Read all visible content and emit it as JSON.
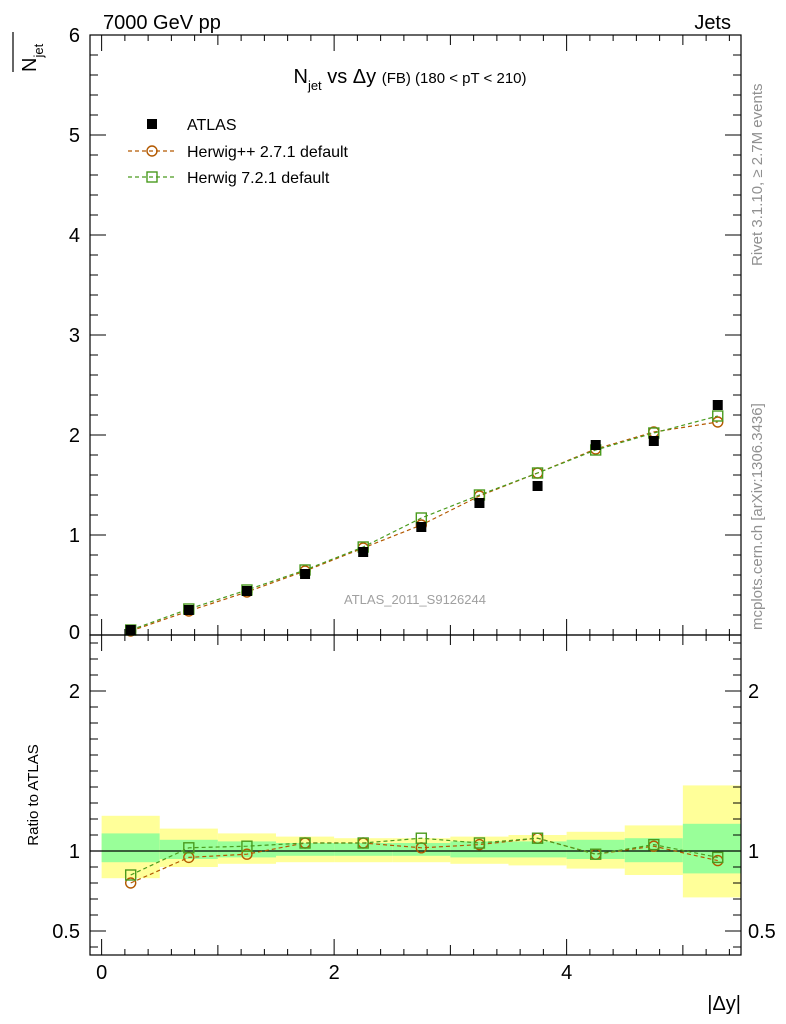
{
  "header": {
    "energy_label": "7000 GeV pp",
    "category_label": "Jets"
  },
  "side_text": {
    "rivet_label": "Rivet 3.1.10, ≥ 2.7M events",
    "source_label": "mcplots.cern.ch [arXiv:1306.3436]"
  },
  "chart_data": [
    {
      "type": "scatter",
      "panel": "main",
      "title_main": "N",
      "title_sub": "jet",
      "title_mid": " vs Δy ",
      "title_tail": "(FB)",
      "title_range": " (180 < pT < 210)",
      "ylabel_main": "N",
      "ylabel_sub": "jet",
      "analysis_label": "ATLAS_2011_S9126244",
      "xlim": [
        -0.1,
        5.5
      ],
      "ylim": [
        0,
        6
      ],
      "y_ticks": [
        "0",
        "1",
        "2",
        "3",
        "4",
        "5",
        "6"
      ],
      "legend_position": "top-left",
      "x": [
        0.25,
        0.75,
        1.25,
        1.75,
        2.25,
        2.75,
        3.25,
        3.75,
        4.25,
        4.75,
        5.3
      ],
      "series": [
        {
          "name": "ATLAS",
          "color": "#000000",
          "marker": "filled-square",
          "values": [
            0.05,
            0.25,
            0.44,
            0.61,
            0.83,
            1.08,
            1.32,
            1.49,
            1.9,
            1.94,
            2.3
          ]
        },
        {
          "name": "Herwig++ 2.7.1 default",
          "color": "#b35900",
          "marker": "open-circle",
          "values": [
            0.04,
            0.24,
            0.43,
            0.64,
            0.87,
            1.1,
            1.39,
            1.62,
            1.86,
            2.03,
            2.13
          ]
        },
        {
          "name": "Herwig 7.2.1 default",
          "color": "#4a9b1e",
          "marker": "open-square",
          "values": [
            0.05,
            0.26,
            0.45,
            0.65,
            0.88,
            1.17,
            1.4,
            1.62,
            1.85,
            2.02,
            2.19
          ]
        }
      ]
    },
    {
      "type": "scatter",
      "panel": "ratio",
      "ylabel": "Ratio to ATLAS",
      "xlabel": "|Δy|",
      "xlim": [
        -0.1,
        5.5
      ],
      "ylim": [
        0.35,
        2.35
      ],
      "x_ticks": [
        "0",
        "2",
        "4"
      ],
      "y_ticks": [
        "0.5",
        "1",
        "2"
      ],
      "x": [
        0.25,
        0.75,
        1.25,
        1.75,
        2.25,
        2.75,
        3.25,
        3.75,
        4.25,
        4.75,
        5.3
      ],
      "bins": [
        [
          0,
          0.5
        ],
        [
          0.5,
          1.0
        ],
        [
          1.0,
          1.5
        ],
        [
          1.5,
          2.0
        ],
        [
          2.0,
          2.5
        ],
        [
          2.5,
          3.0
        ],
        [
          3.0,
          3.5
        ],
        [
          3.5,
          4.0
        ],
        [
          4.0,
          4.5
        ],
        [
          4.5,
          5.0
        ],
        [
          5.0,
          5.5
        ]
      ],
      "band_yellow": [
        [
          0.83,
          1.22
        ],
        [
          0.9,
          1.14
        ],
        [
          0.92,
          1.11
        ],
        [
          0.93,
          1.09
        ],
        [
          0.93,
          1.08
        ],
        [
          0.93,
          1.08
        ],
        [
          0.92,
          1.09
        ],
        [
          0.91,
          1.1
        ],
        [
          0.89,
          1.12
        ],
        [
          0.85,
          1.16
        ],
        [
          0.71,
          1.41
        ]
      ],
      "band_green": [
        [
          0.93,
          1.11
        ],
        [
          0.95,
          1.07
        ],
        [
          0.96,
          1.06
        ],
        [
          0.97,
          1.05
        ],
        [
          0.97,
          1.05
        ],
        [
          0.97,
          1.05
        ],
        [
          0.96,
          1.06
        ],
        [
          0.96,
          1.06
        ],
        [
          0.95,
          1.07
        ],
        [
          0.93,
          1.08
        ],
        [
          0.86,
          1.17
        ]
      ],
      "series": [
        {
          "name": "Herwig++ 2.7.1 default",
          "color": "#b35900",
          "marker": "open-circle",
          "values": [
            0.8,
            0.96,
            0.98,
            1.05,
            1.05,
            1.02,
            1.04,
            1.08,
            0.98,
            1.03,
            0.94
          ]
        },
        {
          "name": "Herwig 7.2.1 default",
          "color": "#4a9b1e",
          "marker": "open-square",
          "values": [
            0.85,
            1.02,
            1.03,
            1.05,
            1.05,
            1.08,
            1.05,
            1.08,
            0.98,
            1.04,
            0.96
          ]
        }
      ]
    }
  ]
}
